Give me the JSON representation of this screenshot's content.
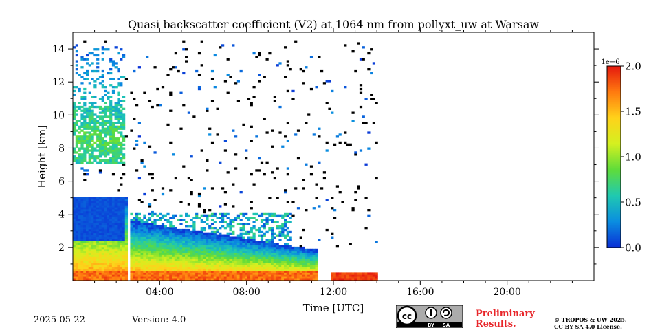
{
  "chart_data": {
    "type": "heatmap",
    "title": "Quasi backscatter coefficient (V2) at 1064 nm from pollyxt_uw at Warsaw",
    "xlabel": "Time [UTC]",
    "ylabel": "Height [km]",
    "xlim_hours": [
      0,
      24
    ],
    "ylim_km": [
      0,
      15
    ],
    "xticks": [
      {
        "value": 4,
        "label": "04:00"
      },
      {
        "value": 8,
        "label": "08:00"
      },
      {
        "value": 12,
        "label": "12:00"
      },
      {
        "value": 16,
        "label": "16:00"
      },
      {
        "value": 20,
        "label": "20:00"
      }
    ],
    "yticks": [
      {
        "value": 2,
        "label": "2"
      },
      {
        "value": 4,
        "label": "4"
      },
      {
        "value": 6,
        "label": "6"
      },
      {
        "value": 8,
        "label": "8"
      },
      {
        "value": 10,
        "label": "10"
      },
      {
        "value": 12,
        "label": "12"
      },
      {
        "value": 14,
        "label": "14"
      }
    ],
    "colorbar": {
      "range": [
        0.0,
        2.0
      ],
      "multiplier": "1e−6",
      "ticks": [
        {
          "value": 0.0,
          "label": "0.0"
        },
        {
          "value": 0.5,
          "label": "0.5"
        },
        {
          "value": 1.0,
          "label": "1.0"
        },
        {
          "value": 1.5,
          "label": "1.5"
        },
        {
          "value": 2.0,
          "label": "2.0"
        }
      ],
      "colormap": [
        "#0a2fd6",
        "#0a8ee0",
        "#20c9b0",
        "#5fdc3a",
        "#d4f020",
        "#ffd21a",
        "#ff7a0f",
        "#e4180e"
      ]
    },
    "data_end_hours": 14.0,
    "features": [
      {
        "name": "boundary layer",
        "t_start": 0.0,
        "t_end": 11.2,
        "top_km_start": 5.0,
        "top_km_end": 1.8,
        "max_value": 1.9
      },
      {
        "name": "boundary layer (low)",
        "t_start": 11.8,
        "t_end": 14.0,
        "top_km": 0.4,
        "max_value": 2.0
      },
      {
        "name": "cirrus",
        "t_start": 0.0,
        "t_end": 2.4,
        "base_km": 7.0,
        "top_km": 14.2,
        "max_value": 1.0
      },
      {
        "name": "residual aerosol / clouds",
        "t_start": 2.4,
        "t_end": 10.0,
        "base_km": 2.0,
        "top_km": 4.0,
        "max_value": 0.9
      },
      {
        "name": "data gap",
        "t_start": 2.45,
        "t_end": 2.6
      }
    ]
  },
  "footer": {
    "date": "2025-05-22",
    "version": "Version: 4.0",
    "preliminary_line1": "Preliminary",
    "preliminary_line2": "Results.",
    "copyright_line1": "© TROPOS & UW 2025.",
    "copyright_line2": "CC BY SA 4.0 License.",
    "cc_badge": [
      "cc",
      "BY",
      "SA"
    ]
  }
}
